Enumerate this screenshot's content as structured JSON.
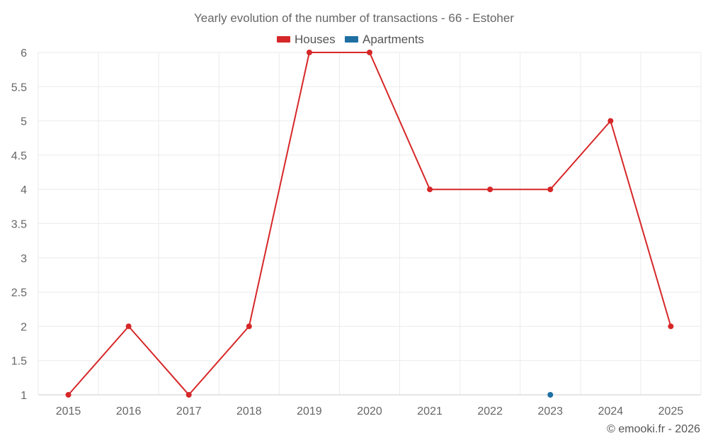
{
  "chart_data": {
    "type": "line",
    "title": "Yearly evolution of the number of transactions - 66 - Estoher",
    "categories": [
      "2015",
      "2016",
      "2017",
      "2018",
      "2019",
      "2020",
      "2021",
      "2022",
      "2023",
      "2024",
      "2025"
    ],
    "series": [
      {
        "name": "Houses",
        "color": "#d62728",
        "values": [
          1,
          2,
          1,
          2,
          6,
          6,
          4,
          4,
          4,
          5,
          2
        ]
      },
      {
        "name": "Apartments",
        "color": "#1f6fa3",
        "values": [
          null,
          null,
          null,
          null,
          null,
          null,
          null,
          null,
          1,
          null,
          null
        ]
      }
    ],
    "yticks": [
      "1",
      "1.5",
      "2",
      "2.5",
      "3",
      "3.5",
      "4",
      "4.5",
      "5",
      "5.5",
      "6"
    ],
    "ylim": [
      1,
      6
    ],
    "grid": true,
    "legend": "top-center",
    "xlabel": "",
    "ylabel": ""
  },
  "credit": "© emooki.fr - 2026"
}
